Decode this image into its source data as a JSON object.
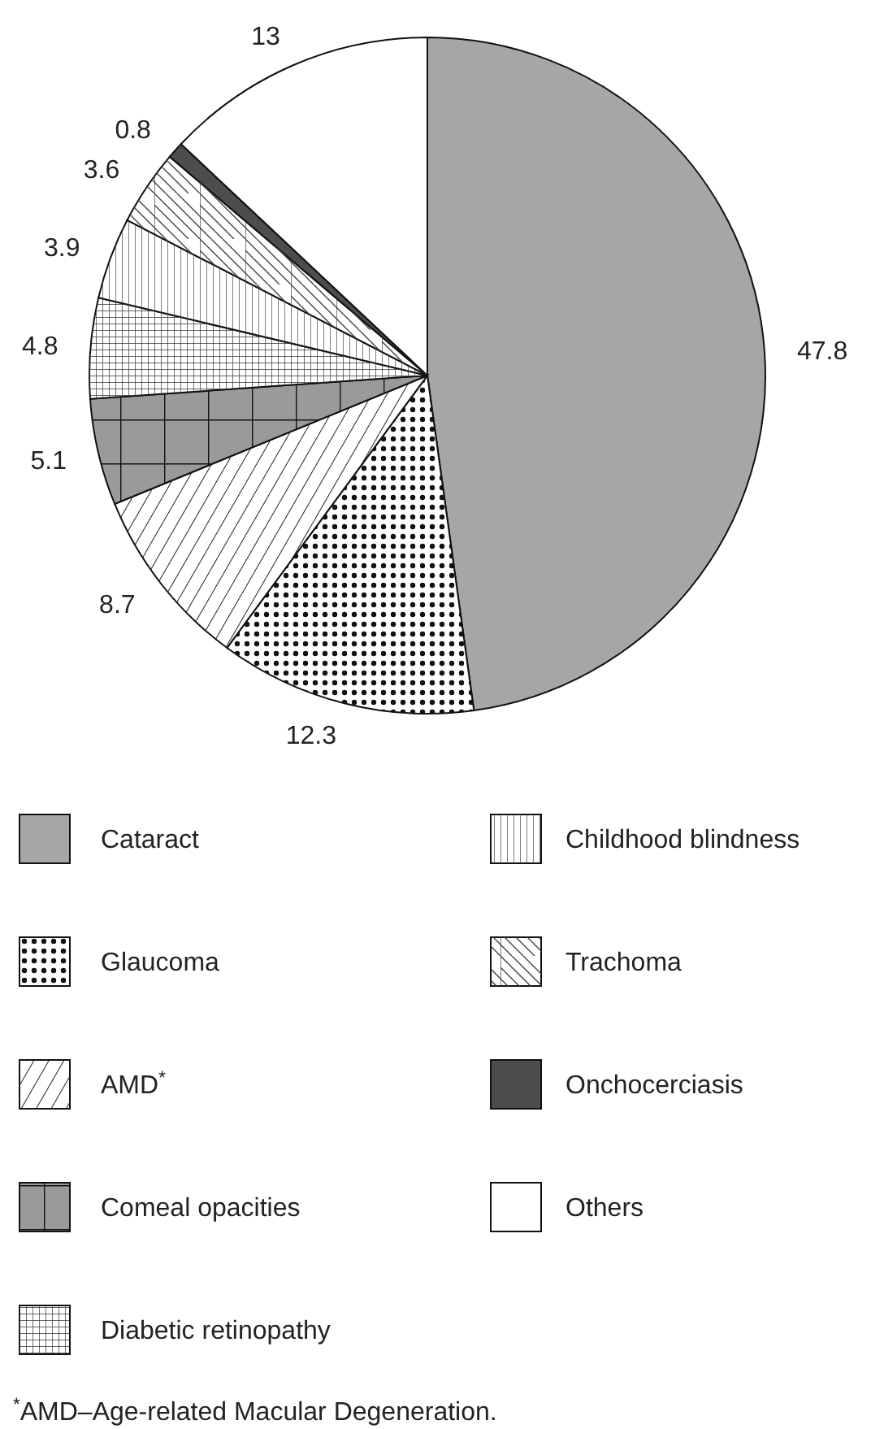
{
  "chart_data": {
    "type": "pie",
    "categories": [
      "Cataract",
      "Glaucoma",
      "AMD$^{*}$",
      "Comeal opacities",
      "Diabetic retinopathy",
      "Childhood blindness",
      "Trachoma",
      "Onchocerciasis",
      "Others"
    ],
    "values": [
      47.8,
      12.3,
      8.7,
      5.1,
      4.8,
      3.9,
      3.6,
      0.8,
      13
    ],
    "colors": [
      "#a6a6a6",
      "#ffffff",
      "#ffffff",
      "#9a9a9a",
      "#ffffff",
      "#ffffff",
      "#ffffff",
      "#4d4d4d",
      "#ffffff"
    ],
    "data_labels": true,
    "legend": "bottom",
    "annotations": [
      "$^{*}$AMD–Age-related Macular Degeneration."
    ]
  }
}
